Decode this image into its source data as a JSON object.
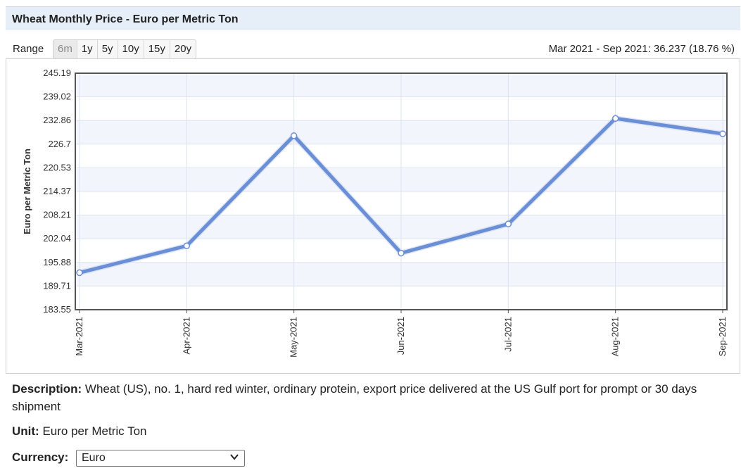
{
  "header": {
    "title": "Wheat Monthly Price - Euro per Metric Ton"
  },
  "range": {
    "label": "Range",
    "buttons": [
      "6m",
      "1y",
      "5y",
      "10y",
      "15y",
      "20y"
    ],
    "active": "6m",
    "change_text": "Mar 2021 - Sep 2021: 36.237 (18.76 %)"
  },
  "chart_data": {
    "type": "line",
    "x": [
      "Mar-2021",
      "Apr-2021",
      "May-2021",
      "Jun-2021",
      "Jul-2021",
      "Aug-2021",
      "Sep-2021"
    ],
    "series": [
      {
        "values": [
          193.2,
          200.2,
          228.9,
          198.3,
          205.9,
          233.4,
          229.4
        ]
      }
    ],
    "ylabel": "Euro per Metric Ton",
    "xlabel": "",
    "ylim": [
      183.55,
      245.19
    ],
    "yticks": [
      "183.55",
      "189.71",
      "195.88",
      "202.04",
      "208.21",
      "214.37",
      "220.53",
      "226.7",
      "232.86",
      "239.02",
      "245.19"
    ],
    "grid": true,
    "line_color": "#6a8fd6",
    "band_color": "#f2f5fc"
  },
  "description": {
    "label": "Description:",
    "text": "Wheat (US), no. 1, hard red winter, ordinary protein, export price delivered at the US Gulf port for prompt or 30 days shipment"
  },
  "unit": {
    "label": "Unit:",
    "text": "Euro per Metric Ton"
  },
  "currency": {
    "label": "Currency:",
    "selected": "Euro",
    "icon": "chevron-down-icon"
  }
}
